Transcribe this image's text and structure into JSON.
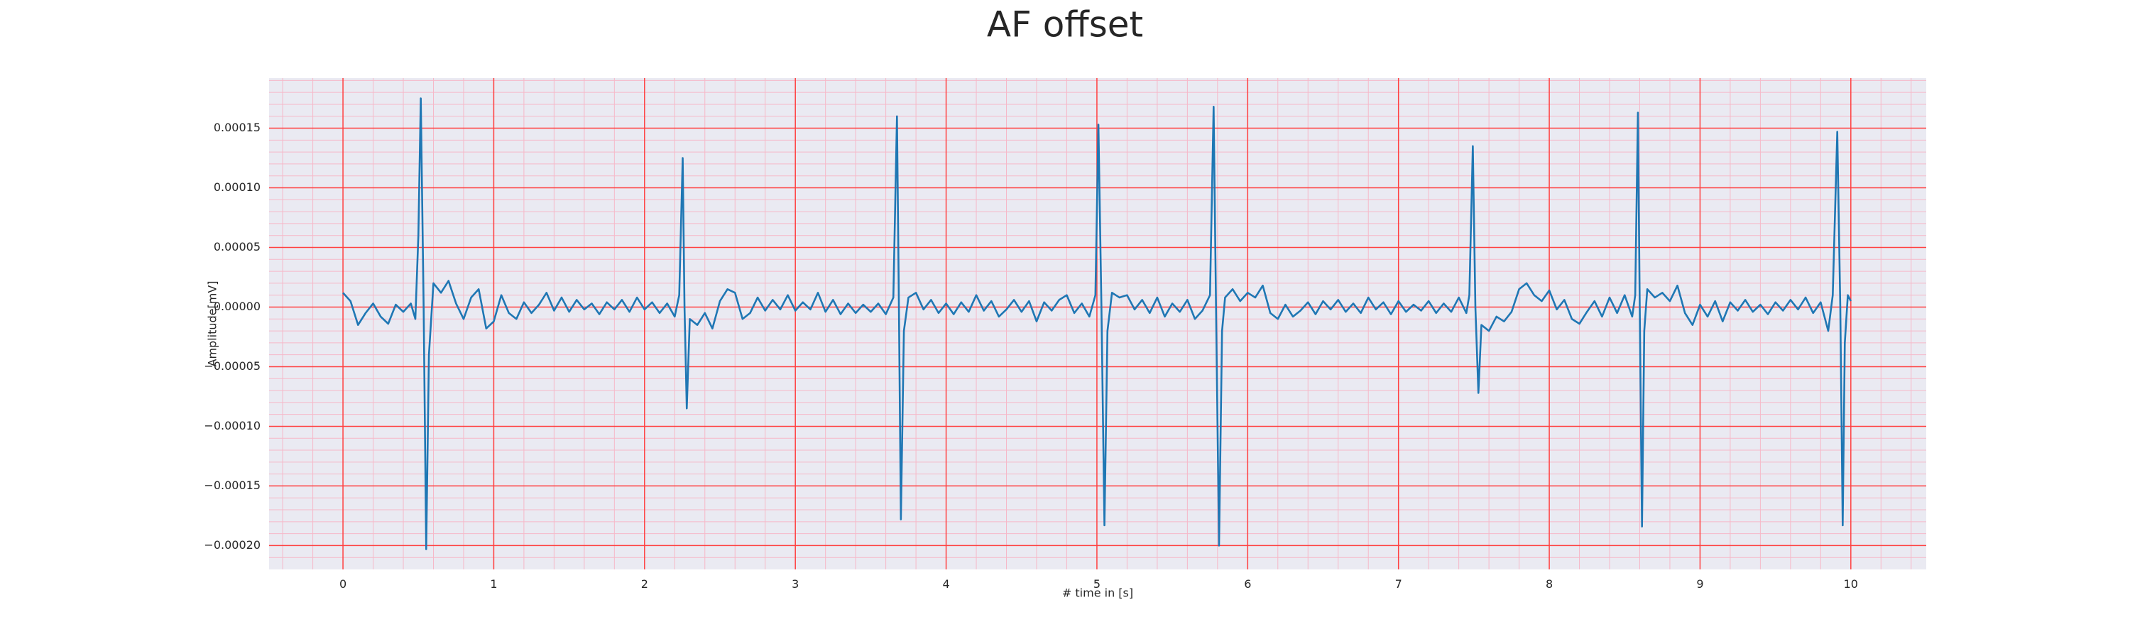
{
  "chart_data": {
    "type": "line",
    "title": "AF offset",
    "xlabel": "# time in [s]",
    "ylabel": "Amplitude[mV]",
    "color": "#1f77b4",
    "background": "#eaeaf2",
    "grid": true,
    "grid_color": "#ff4040",
    "minor_grid": true,
    "minor_grid_color": "#f6b8c8",
    "xlim": [
      -0.49,
      10.5
    ],
    "ylim": [
      -0.00022,
      0.000192
    ],
    "xticks": [
      0,
      1,
      2,
      3,
      4,
      5,
      6,
      7,
      8,
      9,
      10
    ],
    "yticks": [
      {
        "value": -0.0002,
        "label": "−0.00020"
      },
      {
        "value": -0.00015,
        "label": "−0.00015"
      },
      {
        "value": -0.0001,
        "label": "−0.00010"
      },
      {
        "value": -5e-05,
        "label": "−0.00005"
      },
      {
        "value": 0,
        "label": "0.00000"
      },
      {
        "value": 5e-05,
        "label": "0.00005"
      },
      {
        "value": 0.0001,
        "label": "0.00010"
      },
      {
        "value": 0.00015,
        "label": "0.00015"
      }
    ],
    "x": [
      0,
      0.05,
      0.1,
      0.15,
      0.2,
      0.25,
      0.3,
      0.35,
      0.4,
      0.45,
      0.48,
      0.5,
      0.516,
      0.535,
      0.552,
      0.57,
      0.6,
      0.65,
      0.7,
      0.75,
      0.8,
      0.85,
      0.9,
      0.95,
      1.0,
      1.05,
      1.1,
      1.15,
      1.2,
      1.25,
      1.3,
      1.35,
      1.4,
      1.45,
      1.5,
      1.55,
      1.6,
      1.65,
      1.7,
      1.75,
      1.8,
      1.85,
      1.9,
      1.95,
      2.0,
      2.05,
      2.1,
      2.15,
      2.2,
      2.23,
      2.253,
      2.265,
      2.28,
      2.3,
      2.35,
      2.4,
      2.45,
      2.5,
      2.55,
      2.6,
      2.65,
      2.7,
      2.75,
      2.8,
      2.85,
      2.9,
      2.95,
      3.0,
      3.05,
      3.1,
      3.15,
      3.2,
      3.25,
      3.3,
      3.35,
      3.4,
      3.45,
      3.5,
      3.55,
      3.6,
      3.65,
      3.674,
      3.687,
      3.7,
      3.72,
      3.75,
      3.8,
      3.85,
      3.9,
      3.95,
      4.0,
      4.05,
      4.1,
      4.15,
      4.2,
      4.25,
      4.3,
      4.35,
      4.4,
      4.45,
      4.5,
      4.55,
      4.6,
      4.65,
      4.7,
      4.75,
      4.8,
      4.85,
      4.9,
      4.95,
      4.99,
      5.01,
      5.03,
      5.05,
      5.07,
      5.1,
      5.15,
      5.2,
      5.25,
      5.3,
      5.35,
      5.4,
      5.45,
      5.5,
      5.55,
      5.6,
      5.65,
      5.7,
      5.75,
      5.774,
      5.79,
      5.81,
      5.83,
      5.85,
      5.9,
      5.95,
      6.0,
      6.05,
      6.1,
      6.15,
      6.2,
      6.25,
      6.3,
      6.35,
      6.4,
      6.45,
      6.5,
      6.55,
      6.6,
      6.65,
      6.7,
      6.75,
      6.8,
      6.85,
      6.9,
      6.95,
      7.0,
      7.05,
      7.1,
      7.15,
      7.2,
      7.25,
      7.3,
      7.35,
      7.4,
      7.45,
      7.47,
      7.493,
      7.51,
      7.53,
      7.55,
      7.6,
      7.65,
      7.7,
      7.75,
      7.8,
      7.85,
      7.9,
      7.95,
      8.0,
      8.05,
      8.1,
      8.15,
      8.2,
      8.25,
      8.3,
      8.35,
      8.4,
      8.45,
      8.5,
      8.55,
      8.57,
      8.588,
      8.6,
      8.615,
      8.63,
      8.65,
      8.7,
      8.75,
      8.8,
      8.85,
      8.9,
      8.95,
      9.0,
      9.05,
      9.1,
      9.15,
      9.2,
      9.25,
      9.3,
      9.35,
      9.4,
      9.45,
      9.5,
      9.55,
      9.6,
      9.65,
      9.7,
      9.75,
      9.8,
      9.85,
      9.88,
      9.91,
      9.93,
      9.946,
      9.96,
      9.98,
      10.0
    ],
    "values": [
      1.2e-05,
      5e-06,
      -1.5e-05,
      -5e-06,
      3e-06,
      -8e-06,
      -1.4e-05,
      2e-06,
      -4e-06,
      3e-06,
      -1e-05,
      6e-05,
      0.000175,
      0,
      -0.000203,
      -4e-05,
      2e-05,
      1.2e-05,
      2.2e-05,
      3e-06,
      -1e-05,
      8e-06,
      1.5e-05,
      -1.8e-05,
      -1.2e-05,
      1e-05,
      -5e-06,
      -1e-05,
      4e-06,
      -5e-06,
      2e-06,
      1.2e-05,
      -3e-06,
      8e-06,
      -4e-06,
      6e-06,
      -2e-06,
      3e-06,
      -6e-06,
      4e-06,
      -2e-06,
      6e-06,
      -4e-06,
      8e-06,
      -2e-06,
      4e-06,
      -5e-06,
      3e-06,
      -8e-06,
      1e-05,
      0.000125,
      0,
      -8.5e-05,
      -1e-05,
      -1.5e-05,
      -5e-06,
      -1.8e-05,
      5e-06,
      1.5e-05,
      1.2e-05,
      -1e-05,
      -5e-06,
      8e-06,
      -3e-06,
      6e-06,
      -2e-06,
      1e-05,
      -3e-06,
      4e-06,
      -2e-06,
      1.2e-05,
      -4e-06,
      6e-06,
      -6e-06,
      3e-06,
      -5e-06,
      2e-06,
      -4e-06,
      3e-06,
      -6e-06,
      8e-06,
      0.00016,
      0,
      -0.000178,
      -2e-05,
      8e-06,
      1.2e-05,
      -2e-06,
      6e-06,
      -5e-06,
      3e-06,
      -6e-06,
      4e-06,
      -4e-06,
      1e-05,
      -3e-06,
      5e-06,
      -8e-06,
      -2e-06,
      6e-06,
      -4e-06,
      5e-06,
      -1.2e-05,
      4e-06,
      -3e-06,
      6e-06,
      1e-05,
      -5e-06,
      3e-06,
      -8e-06,
      1e-05,
      0.000153,
      0,
      -0.000183,
      -2e-05,
      1.2e-05,
      8e-06,
      1e-05,
      -2e-06,
      6e-06,
      -5e-06,
      8e-06,
      -8e-06,
      3e-06,
      -4e-06,
      6e-06,
      -1e-05,
      -3e-06,
      1e-05,
      0.000168,
      0,
      -0.0002,
      -2e-05,
      8e-06,
      1.5e-05,
      5e-06,
      1.2e-05,
      8e-06,
      1.8e-05,
      -5e-06,
      -1e-05,
      2e-06,
      -8e-06,
      -3e-06,
      4e-06,
      -6e-06,
      5e-06,
      -2e-06,
      6e-06,
      -4e-06,
      3e-06,
      -5e-06,
      8e-06,
      -2e-06,
      4e-06,
      -6e-06,
      5e-06,
      -4e-06,
      2e-06,
      -3e-06,
      5e-06,
      -5e-06,
      3e-06,
      -4e-06,
      8e-06,
      -5e-06,
      1e-05,
      0.000135,
      0,
      -7.2e-05,
      -1.5e-05,
      -2e-05,
      -8e-06,
      -1.2e-05,
      -4e-06,
      1.5e-05,
      2e-05,
      1e-05,
      5e-06,
      1.4e-05,
      -2e-06,
      6e-06,
      -1e-05,
      -1.4e-05,
      -4e-06,
      5e-06,
      -8e-06,
      8e-06,
      -5e-06,
      1e-05,
      -8e-06,
      1e-05,
      0.000163,
      0,
      -0.000184,
      -2e-05,
      1.5e-05,
      8e-06,
      1.2e-05,
      5e-06,
      1.8e-05,
      -5e-06,
      -1.5e-05,
      2e-06,
      -8e-06,
      5e-06,
      -1.2e-05,
      4e-06,
      -3e-06,
      6e-06,
      -4e-06,
      2e-06,
      -6e-06,
      4e-06,
      -3e-06,
      6e-06,
      -2e-06,
      8e-06,
      -5e-06,
      4e-06,
      -2e-05,
      1e-05,
      0.000147,
      0,
      -0.000183,
      -3e-05,
      1e-05,
      5e-06
    ]
  }
}
